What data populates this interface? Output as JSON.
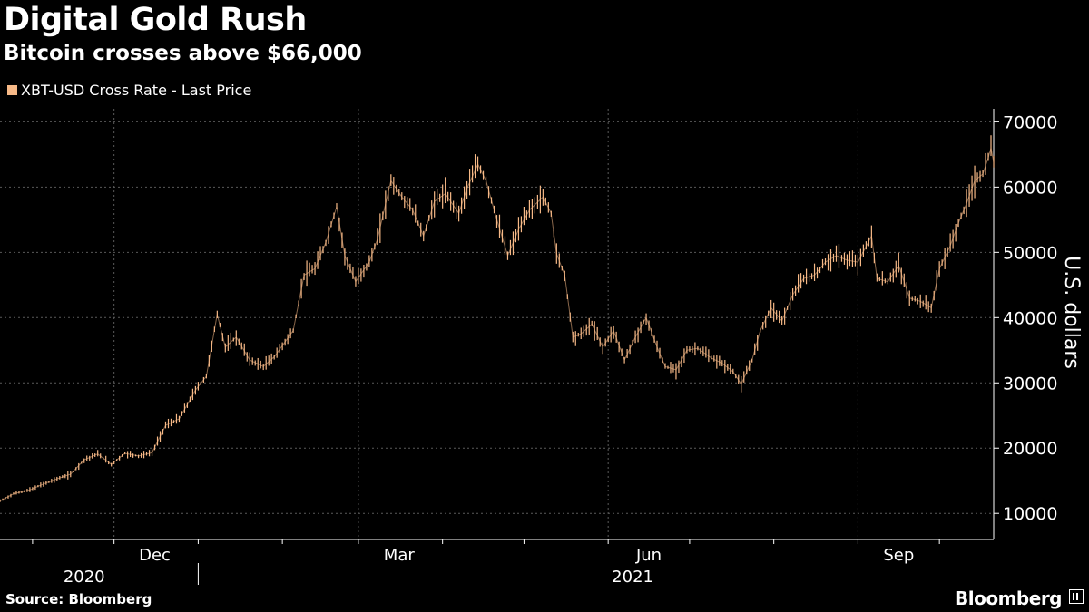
{
  "header": {
    "title": "Digital Gold Rush",
    "subtitle": "Bitcoin crosses above $66,000"
  },
  "legend": {
    "label": "XBT-USD Cross Rate - Last Price"
  },
  "footer": {
    "source": "Source: Bloomberg",
    "brand": "Bloomberg"
  },
  "colors": {
    "background": "#000000",
    "series": "#f7b987",
    "grid": "#5a5a5a",
    "text": "#ffffff"
  },
  "chart_data": {
    "type": "line",
    "title": "Digital Gold Rush",
    "subtitle": "Bitcoin crosses above $66,000",
    "ylabel": "U.S. dollars",
    "xlabel": "",
    "ylim": [
      6000,
      72000
    ],
    "yticks": [
      10000,
      20000,
      30000,
      40000,
      50000,
      60000,
      70000
    ],
    "y_axis_position": "right",
    "grid": true,
    "legend_position": "top-left",
    "xlim": [
      "2020-10-20",
      "2021-10-21"
    ],
    "month_ticks": [
      "2020-11-01",
      "2020-12-01",
      "2021-01-01",
      "2021-02-01",
      "2021-03-01",
      "2021-04-01",
      "2021-05-01",
      "2021-06-01",
      "2021-07-01",
      "2021-08-01",
      "2021-09-01",
      "2021-10-01"
    ],
    "month_labels": [
      {
        "label": "Dec",
        "date": "2020-12-01"
      },
      {
        "label": "Mar",
        "date": "2021-03-01"
      },
      {
        "label": "Jun",
        "date": "2021-06-01"
      },
      {
        "label": "Sep",
        "date": "2021-09-01"
      }
    ],
    "year_labels": [
      {
        "label": "2020",
        "date": "2020-11-20"
      },
      {
        "label": "2021",
        "date": "2021-06-10"
      }
    ],
    "year_separator": "2021-01-01",
    "series": [
      {
        "name": "XBT-USD Cross Rate - Last Price",
        "points": [
          [
            "2020-10-20",
            11900
          ],
          [
            "2020-10-25",
            13000
          ],
          [
            "2020-10-31",
            13600
          ],
          [
            "2020-11-05",
            14500
          ],
          [
            "2020-11-10",
            15300
          ],
          [
            "2020-11-15",
            16000
          ],
          [
            "2020-11-20",
            18200
          ],
          [
            "2020-11-25",
            19100
          ],
          [
            "2020-11-30",
            17500
          ],
          [
            "2020-12-05",
            19200
          ],
          [
            "2020-12-10",
            18800
          ],
          [
            "2020-12-15",
            19300
          ],
          [
            "2020-12-20",
            23500
          ],
          [
            "2020-12-25",
            24500
          ],
          [
            "2020-12-31",
            28900
          ],
          [
            "2021-01-04",
            31000
          ],
          [
            "2021-01-08",
            40500
          ],
          [
            "2021-01-11",
            35500
          ],
          [
            "2021-01-15",
            37000
          ],
          [
            "2021-01-20",
            33500
          ],
          [
            "2021-01-25",
            32500
          ],
          [
            "2021-01-29",
            34000
          ],
          [
            "2021-02-05",
            38000
          ],
          [
            "2021-02-09",
            46500
          ],
          [
            "2021-02-13",
            47500
          ],
          [
            "2021-02-17",
            51500
          ],
          [
            "2021-02-21",
            57000
          ],
          [
            "2021-02-24",
            49500
          ],
          [
            "2021-02-28",
            45500
          ],
          [
            "2021-03-05",
            48500
          ],
          [
            "2021-03-08",
            52000
          ],
          [
            "2021-03-13",
            61000
          ],
          [
            "2021-03-17",
            58500
          ],
          [
            "2021-03-21",
            56500
          ],
          [
            "2021-03-25",
            52500
          ],
          [
            "2021-03-29",
            57800
          ],
          [
            "2021-04-02",
            59000
          ],
          [
            "2021-04-07",
            56000
          ],
          [
            "2021-04-10",
            59800
          ],
          [
            "2021-04-14",
            63500
          ],
          [
            "2021-04-17",
            61000
          ],
          [
            "2021-04-21",
            55000
          ],
          [
            "2021-04-25",
            49500
          ],
          [
            "2021-04-29",
            53500
          ],
          [
            "2021-05-03",
            56500
          ],
          [
            "2021-05-08",
            58500
          ],
          [
            "2021-05-11",
            56000
          ],
          [
            "2021-05-13",
            49800
          ],
          [
            "2021-05-16",
            46500
          ],
          [
            "2021-05-19",
            37000
          ],
          [
            "2021-05-22",
            37500
          ],
          [
            "2021-05-26",
            39000
          ],
          [
            "2021-05-30",
            35500
          ],
          [
            "2021-06-03",
            38000
          ],
          [
            "2021-06-07",
            33500
          ],
          [
            "2021-06-11",
            37000
          ],
          [
            "2021-06-15",
            40000
          ],
          [
            "2021-06-19",
            35500
          ],
          [
            "2021-06-22",
            32500
          ],
          [
            "2021-06-26",
            32000
          ],
          [
            "2021-06-30",
            35000
          ],
          [
            "2021-07-04",
            35300
          ],
          [
            "2021-07-09",
            33800
          ],
          [
            "2021-07-13",
            33000
          ],
          [
            "2021-07-17",
            31700
          ],
          [
            "2021-07-20",
            29800
          ],
          [
            "2021-07-24",
            33500
          ],
          [
            "2021-07-27",
            38000
          ],
          [
            "2021-07-31",
            41500
          ],
          [
            "2021-08-04",
            39500
          ],
          [
            "2021-08-08",
            43500
          ],
          [
            "2021-08-12",
            46000
          ],
          [
            "2021-08-16",
            46500
          ],
          [
            "2021-08-20",
            48500
          ],
          [
            "2021-08-24",
            49500
          ],
          [
            "2021-08-28",
            48800
          ],
          [
            "2021-09-01",
            48500
          ],
          [
            "2021-09-06",
            52500
          ],
          [
            "2021-09-08",
            46000
          ],
          [
            "2021-09-12",
            45500
          ],
          [
            "2021-09-16",
            48000
          ],
          [
            "2021-09-20",
            43000
          ],
          [
            "2021-09-24",
            42500
          ],
          [
            "2021-09-28",
            41500
          ],
          [
            "2021-10-01",
            47500
          ],
          [
            "2021-10-05",
            51000
          ],
          [
            "2021-10-08",
            54500
          ],
          [
            "2021-10-11",
            57500
          ],
          [
            "2021-10-14",
            61000
          ],
          [
            "2021-10-17",
            62000
          ],
          [
            "2021-10-19",
            64500
          ],
          [
            "2021-10-20",
            66000
          ],
          [
            "2021-10-21",
            63800
          ]
        ]
      }
    ]
  }
}
